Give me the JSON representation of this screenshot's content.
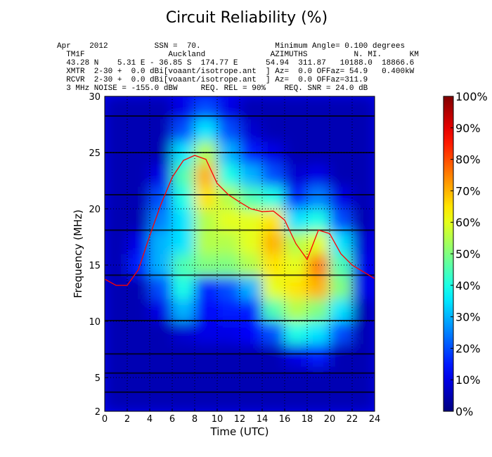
{
  "chart_data": {
    "type": "heatmap",
    "title": "Circuit Reliability (%)",
    "header_lines": [
      "Apr    2012          SSN =  70.                Minimum Angle= 0.100 degrees",
      "  TM1F                  Auckland              AZIMUTHS          N. MI.      KM",
      "  43.28 N    5.31 E - 36.85 S  174.77 E      54.94  311.87   10188.0  18866.6",
      "  XMTR  2-30 +  0.0 dBi[voaant/isotrope.ant  ] Az=  0.0 OFFaz= 54.9   0.400kW",
      "  RCVR  2-30 +  0.0 dBi[voaant/isotrope.ant  ] Az=  0.0 OFFaz=311.9",
      "  3 MHz NOISE = -155.0 dBW     REQ. REL = 90%    REQ. SNR = 24.0 dB"
    ],
    "x_label": "Time (UTC)",
    "y_label": "Frequency (MHz)",
    "xlim": [
      0,
      24
    ],
    "xticks": [
      0,
      2,
      4,
      6,
      8,
      10,
      12,
      14,
      16,
      18,
      20,
      22,
      24
    ],
    "ylim": [
      2,
      30
    ],
    "yticks": [
      2,
      5,
      10,
      15,
      20,
      25,
      30
    ],
    "grid": true,
    "colormap": "jet",
    "clim": [
      0,
      100
    ],
    "cticks": [
      {
        "value": 0,
        "label": "0%"
      },
      {
        "value": 10,
        "label": "10%"
      },
      {
        "value": 20,
        "label": "20%"
      },
      {
        "value": 30,
        "label": "30%"
      },
      {
        "value": 40,
        "label": "40%"
      },
      {
        "value": 50,
        "label": "50%"
      },
      {
        "value": 60,
        "label": "60%"
      },
      {
        "value": 70,
        "label": "70%"
      },
      {
        "value": 80,
        "label": "80%"
      },
      {
        "value": 90,
        "label": "90%"
      },
      {
        "value": 100,
        "label": "100%"
      }
    ],
    "x": [
      1,
      3,
      5,
      7,
      9,
      11,
      13,
      15,
      17,
      19,
      21,
      23
    ],
    "y": [
      3,
      5,
      7,
      9,
      11,
      13,
      15,
      17,
      19,
      21,
      23,
      25,
      27,
      29
    ],
    "z": [
      [
        5,
        5,
        5,
        5,
        5,
        5,
        5,
        5,
        5,
        5,
        5,
        5
      ],
      [
        5,
        5,
        5,
        5,
        5,
        5,
        5,
        5,
        5,
        5,
        5,
        5
      ],
      [
        5,
        5,
        5,
        5,
        5,
        5,
        5,
        5,
        10,
        15,
        5,
        5
      ],
      [
        5,
        5,
        5,
        8,
        10,
        10,
        12,
        20,
        40,
        35,
        20,
        5
      ],
      [
        5,
        5,
        10,
        30,
        12,
        15,
        15,
        45,
        55,
        50,
        35,
        5
      ],
      [
        5,
        5,
        20,
        40,
        15,
        20,
        30,
        60,
        65,
        70,
        50,
        10
      ],
      [
        5,
        15,
        30,
        45,
        50,
        50,
        55,
        65,
        60,
        75,
        45,
        10
      ],
      [
        5,
        10,
        30,
        35,
        55,
        55,
        60,
        70,
        55,
        60,
        35,
        8
      ],
      [
        5,
        5,
        25,
        35,
        55,
        60,
        60,
        65,
        35,
        40,
        20,
        5
      ],
      [
        5,
        5,
        20,
        40,
        65,
        55,
        45,
        40,
        15,
        25,
        10,
        5
      ],
      [
        5,
        5,
        10,
        45,
        70,
        40,
        30,
        20,
        8,
        10,
        5,
        5
      ],
      [
        5,
        5,
        5,
        35,
        55,
        30,
        15,
        10,
        5,
        5,
        5,
        5
      ],
      [
        5,
        5,
        5,
        20,
        35,
        20,
        8,
        5,
        5,
        5,
        5,
        5
      ],
      [
        5,
        5,
        5,
        10,
        20,
        10,
        5,
        5,
        5,
        5,
        5,
        5
      ]
    ],
    "frequency_lines": [
      3.7,
      5.4,
      7.1,
      10.06,
      14.1,
      18.1,
      21.25,
      25,
      28.25
    ],
    "muf": {
      "color": "#ff0000",
      "x": [
        0,
        1,
        2,
        3,
        4,
        5,
        6,
        7,
        8,
        9,
        10,
        11,
        12,
        13,
        14,
        15,
        16,
        17,
        18,
        19,
        20,
        21,
        22,
        23,
        24
      ],
      "values": [
        13.75,
        13.2,
        13.2,
        14.6,
        17.6,
        20.4,
        22.8,
        24.3,
        24.75,
        24.4,
        22.25,
        21.25,
        20.6,
        20,
        19.75,
        19.8,
        19,
        16.9,
        15.5,
        18.1,
        17.8,
        16,
        15,
        14.4,
        13.8
      ]
    }
  }
}
